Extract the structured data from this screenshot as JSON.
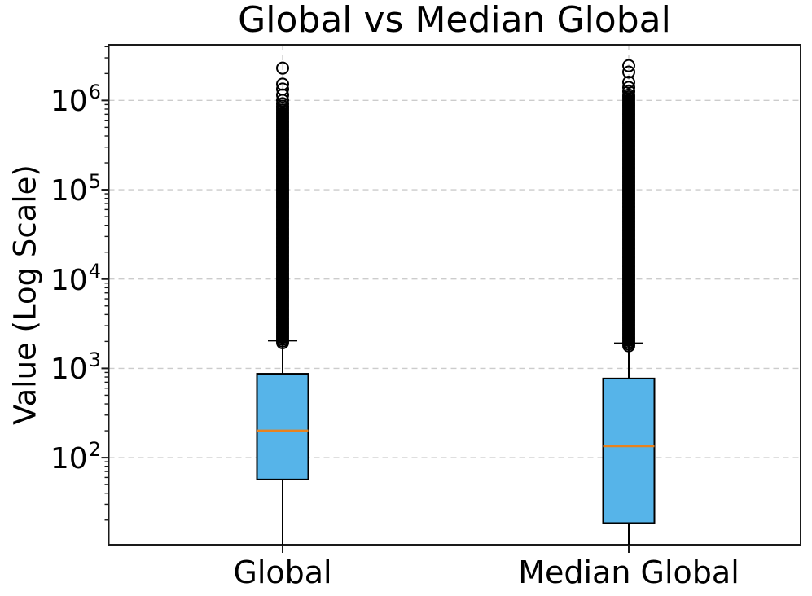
{
  "chart_data": {
    "type": "boxplot",
    "title": "Global vs Median Global",
    "ylabel": "Value (Log Scale)",
    "yscale": "log",
    "ylim": [
      10.6,
      4200000
    ],
    "ytick_exponents": [
      2,
      3,
      4,
      5,
      6
    ],
    "categories": [
      "Global",
      "Median Global"
    ],
    "grid": {
      "show": true,
      "style": "dashed",
      "horizontal": "at each decade",
      "vertical": "at each category"
    },
    "boxes": [
      {
        "category": "Global",
        "q1": 57,
        "median": 200,
        "q3": 870,
        "whisker_high": 2050,
        "whisker_low_clipped_below_axis": true,
        "outliers_top": [
          2300000,
          1520000,
          1340000,
          1150000,
          1000000,
          920000,
          860000
        ],
        "outliers_dense": {
          "max": 820000,
          "min": 2050
        }
      },
      {
        "category": "Median Global",
        "q1": 18.5,
        "median": 135,
        "q3": 770,
        "whisker_high": 1900,
        "whisker_low_clipped_below_axis": true,
        "outliers_top": [
          2450000,
          2080000,
          1600000,
          1400000,
          1260000
        ],
        "outliers_dense": {
          "max": 1150000,
          "min": 1900
        }
      }
    ],
    "style": {
      "box_fill": "#56B4E9",
      "box_edge": "#000000",
      "median_color": "#E8821E",
      "whisker_color": "#000000",
      "outlier_color": "#000000",
      "grid_color": "#cccccc",
      "spine_color": "#1a1a1a",
      "text_color": "#000000",
      "background": "#ffffff"
    }
  }
}
